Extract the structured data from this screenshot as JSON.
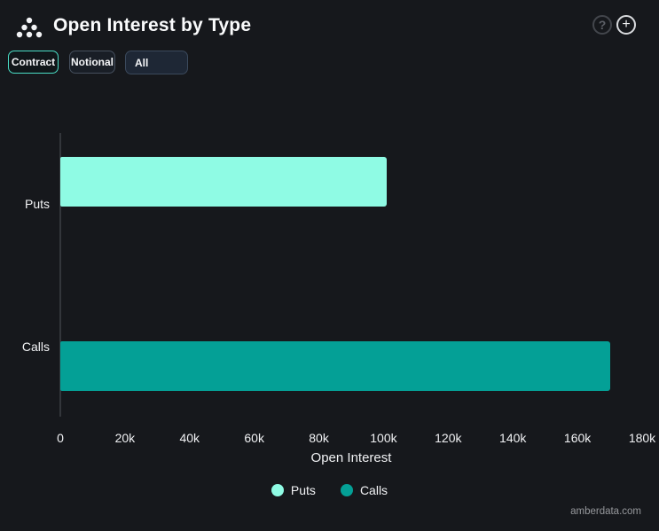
{
  "header": {
    "title": "Open Interest by Type",
    "help_glyph": "?",
    "add_glyph": "+"
  },
  "toolbar": {
    "contract_label": "Contract",
    "notional_label": "Notional",
    "type_filter_value": "All"
  },
  "chart_data": {
    "type": "bar",
    "orientation": "horizontal",
    "title": "Open Interest by Type",
    "categories": [
      "Puts",
      "Calls"
    ],
    "series": [
      {
        "name": "Puts",
        "value": 101000,
        "color": "#8FFBE4"
      },
      {
        "name": "Calls",
        "value": 170000,
        "color": "#04A096"
      }
    ],
    "xlabel": "Open Interest",
    "xlim": [
      0,
      186000
    ],
    "xticks": [
      {
        "label": "0",
        "value": 0
      },
      {
        "label": "20k",
        "value": 20000
      },
      {
        "label": "40k",
        "value": 40000
      },
      {
        "label": "60k",
        "value": 60000
      },
      {
        "label": "80k",
        "value": 80000
      },
      {
        "label": "100k",
        "value": 100000
      },
      {
        "label": "120k",
        "value": 120000
      },
      {
        "label": "140k",
        "value": 140000
      },
      {
        "label": "160k",
        "value": 160000
      },
      {
        "label": "180k",
        "value": 180000
      }
    ],
    "grid": false,
    "legend_position": "bottom"
  },
  "footer": {
    "watermark": "amberdata.com"
  }
}
